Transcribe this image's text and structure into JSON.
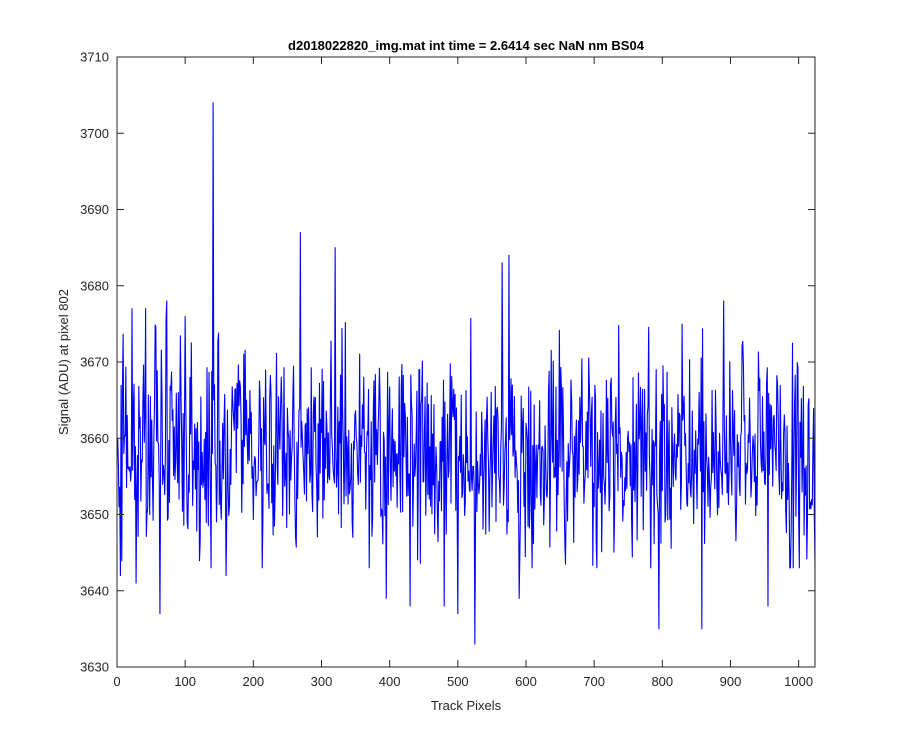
{
  "chart_data": {
    "type": "line",
    "title": "d2018022820_img.mat int time = 2.6414 sec  NaN nm BS04",
    "xlabel": "Track Pixels",
    "ylabel": "Signal (ADU) at pixel 802",
    "xlim": [
      0,
      1024
    ],
    "ylim": [
      3630,
      3710
    ],
    "xticks": [
      0,
      100,
      200,
      300,
      400,
      500,
      600,
      700,
      800,
      900,
      1000
    ],
    "yticks": [
      3630,
      3640,
      3650,
      3660,
      3670,
      3680,
      3690,
      3700,
      3710
    ],
    "grid": false,
    "legend": "none",
    "series": [
      {
        "color": "#0000ff",
        "generator": {
          "n_points": 1024,
          "x_start": 1,
          "mean": 3658,
          "spread": 6.5,
          "seed": 802
        },
        "x": [
          1,
          3,
          5,
          10,
          15,
          22,
          28,
          42,
          48,
          63,
          73,
          100,
          140,
          141,
          142,
          160,
          269,
          320,
          395,
          430,
          480,
          500,
          525,
          565,
          575,
          590,
          795,
          858,
          890,
          955,
          1024
        ],
        "y": [
          3660,
          3651,
          3642,
          3658,
          3663,
          3677,
          3641,
          3677,
          3650,
          3637,
          3678,
          3676,
          3658,
          3704,
          3665,
          3642,
          3687,
          3685,
          3639,
          3638,
          3638,
          3637,
          3633,
          3683,
          3684,
          3639,
          3635,
          3635,
          3678,
          3638,
          3643
        ]
      }
    ]
  }
}
